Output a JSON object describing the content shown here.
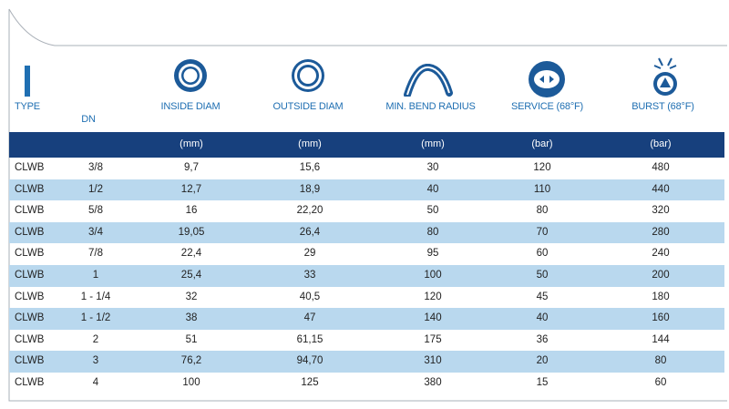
{
  "headers": {
    "type": "TYPE",
    "dn": "DN",
    "inside_diam": "INSIDE DIAM",
    "outside_diam": "OUTSIDE DIAM",
    "bend_radius": "MIN. BEND RADIUS",
    "service": "SERVICE (68°F)",
    "burst": "BURST (68°F)"
  },
  "units": {
    "inside_diam": "(mm)",
    "outside_diam": "(mm)",
    "bend_radius": "(mm)",
    "service": "(bar)",
    "burst": "(bar)"
  },
  "colors": {
    "accent": "#1f6fb2",
    "band": "#17407d",
    "stripe": "#b9d8ee"
  },
  "icons": [
    "type-bar-icon",
    "inside-diameter-icon",
    "outside-diameter-icon",
    "bend-radius-icon",
    "service-pressure-icon",
    "burst-pressure-icon"
  ],
  "rows": [
    [
      "CLWB",
      "3/8",
      "9,7",
      "15,6",
      "30",
      "120",
      "480"
    ],
    [
      "CLWB",
      "1/2",
      "12,7",
      "18,9",
      "40",
      "110",
      "440"
    ],
    [
      "CLWB",
      "5/8",
      "16",
      "22,20",
      "50",
      "80",
      "320"
    ],
    [
      "CLWB",
      "3/4",
      "19,05",
      "26,4",
      "80",
      "70",
      "280"
    ],
    [
      "CLWB",
      "7/8",
      "22,4",
      "29",
      "95",
      "60",
      "240"
    ],
    [
      "CLWB",
      "1",
      "25,4",
      "33",
      "100",
      "50",
      "200"
    ],
    [
      "CLWB",
      "1 - 1/4",
      "32",
      "40,5",
      "120",
      "45",
      "180"
    ],
    [
      "CLWB",
      "1 - 1/2",
      "38",
      "47",
      "140",
      "40",
      "160"
    ],
    [
      "CLWB",
      "2",
      "51",
      "61,15",
      "175",
      "36",
      "144"
    ],
    [
      "CLWB",
      "3",
      "76,2",
      "94,70",
      "310",
      "20",
      "80"
    ],
    [
      "CLWB",
      "4",
      "100",
      "125",
      "380",
      "15",
      "60"
    ]
  ]
}
